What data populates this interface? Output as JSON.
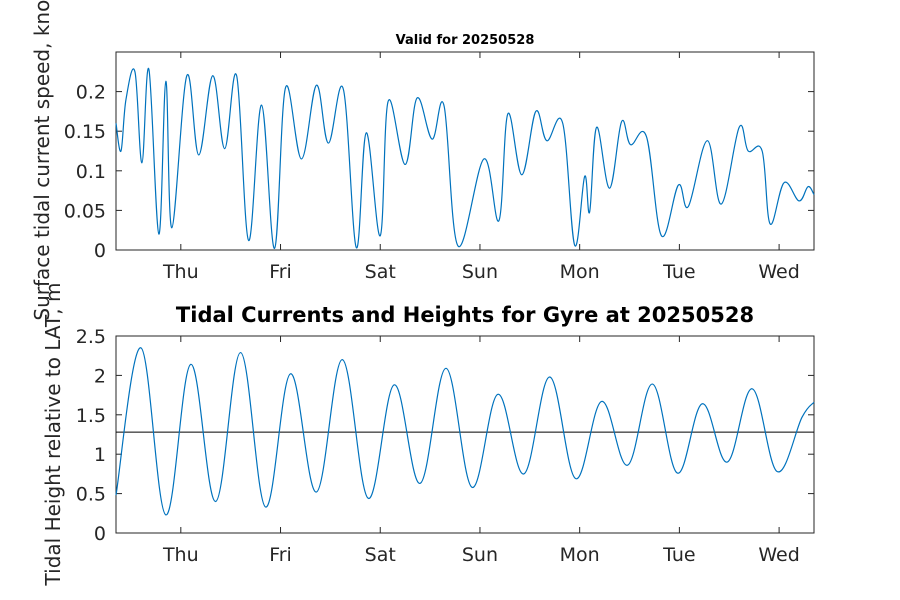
{
  "figure": {
    "top_title": "Valid for 20250528",
    "bottom_title": "Tidal Currents and Heights for Gyre at 20250528"
  },
  "chart_data": [
    {
      "type": "line",
      "title": "Valid for 20250528",
      "xlabel": "",
      "ylabel": "Surface tidal current speed, knots",
      "xlim": [
        -0.65,
        6.35
      ],
      "ylim": [
        0,
        0.25
      ],
      "xticks": [
        0,
        1,
        2,
        3,
        4,
        5,
        6
      ],
      "xticklabels": [
        "Thu",
        "Fri",
        "Sat",
        "Sun",
        "Mon",
        "Tue",
        "Wed"
      ],
      "yticks": [
        0,
        0.05,
        0.1,
        0.15,
        0.2
      ],
      "yticklabels": [
        "0",
        "0.05",
        "0.1",
        "0.15",
        "0.2"
      ],
      "grid": false,
      "color": "#0072BD",
      "series": [
        {
          "x": [
            -0.65,
            -0.6,
            -0.55,
            -0.46,
            -0.39,
            -0.32,
            -0.22,
            -0.15,
            -0.09,
            0.06,
            0.18,
            0.32,
            0.44,
            0.56,
            0.68,
            0.81,
            0.94,
            1.05,
            1.21,
            1.36,
            1.48,
            1.63,
            1.76,
            1.86,
            2.0,
            2.08,
            2.25,
            2.37,
            2.52,
            2.64,
            2.78,
            3.04,
            3.19,
            3.28,
            3.42,
            3.56,
            3.67,
            3.83,
            3.95,
            4.05,
            4.1,
            4.17,
            4.3,
            4.42,
            4.51,
            4.67,
            4.82,
            4.99,
            5.09,
            5.28,
            5.42,
            5.6,
            5.69,
            5.83,
            5.91,
            6.05,
            6.2,
            6.29,
            6.35
          ],
          "y": [
            0.16,
            0.125,
            0.19,
            0.225,
            0.11,
            0.228,
            0.02,
            0.213,
            0.028,
            0.22,
            0.12,
            0.22,
            0.128,
            0.22,
            0.012,
            0.183,
            0.002,
            0.205,
            0.115,
            0.208,
            0.135,
            0.203,
            0.003,
            0.148,
            0.018,
            0.188,
            0.108,
            0.192,
            0.14,
            0.182,
            0.005,
            0.115,
            0.037,
            0.172,
            0.095,
            0.175,
            0.138,
            0.16,
            0.006,
            0.093,
            0.048,
            0.155,
            0.078,
            0.162,
            0.133,
            0.143,
            0.018,
            0.082,
            0.055,
            0.138,
            0.058,
            0.155,
            0.125,
            0.125,
            0.033,
            0.085,
            0.062,
            0.08,
            0.07
          ]
        }
      ]
    },
    {
      "type": "line",
      "title": "Tidal Currents and Heights for Gyre at 20250528",
      "xlabel": "",
      "ylabel": "Tidal Height relative to LAT, m",
      "xlim": [
        -0.65,
        6.35
      ],
      "ylim": [
        0,
        2.5
      ],
      "xticks": [
        0,
        1,
        2,
        3,
        4,
        5,
        6
      ],
      "xticklabels": [
        "Thu",
        "Fri",
        "Sat",
        "Sun",
        "Mon",
        "Tue",
        "Wed"
      ],
      "yticks": [
        0,
        0.5,
        1,
        1.5,
        2,
        2.5
      ],
      "yticklabels": [
        "0",
        "0.5",
        "1",
        "1.5",
        "2",
        "2.5"
      ],
      "grid": false,
      "color": "#0072BD",
      "reference_line": 1.28,
      "series": [
        {
          "x": [
            -0.65,
            -0.4,
            -0.15,
            0.1,
            0.35,
            0.6,
            0.85,
            1.1,
            1.36,
            1.62,
            1.88,
            2.14,
            2.4,
            2.66,
            2.92,
            3.18,
            3.44,
            3.7,
            3.96,
            4.22,
            4.48,
            4.73,
            4.98,
            5.23,
            5.48,
            5.73,
            5.98,
            6.23,
            6.35
          ],
          "y": [
            0.48,
            2.35,
            0.23,
            2.14,
            0.4,
            2.29,
            0.33,
            2.02,
            0.52,
            2.2,
            0.44,
            1.88,
            0.63,
            2.09,
            0.58,
            1.76,
            0.75,
            1.98,
            0.69,
            1.67,
            0.86,
            1.89,
            0.76,
            1.64,
            0.9,
            1.83,
            0.78,
            1.47,
            1.66
          ]
        }
      ]
    }
  ]
}
